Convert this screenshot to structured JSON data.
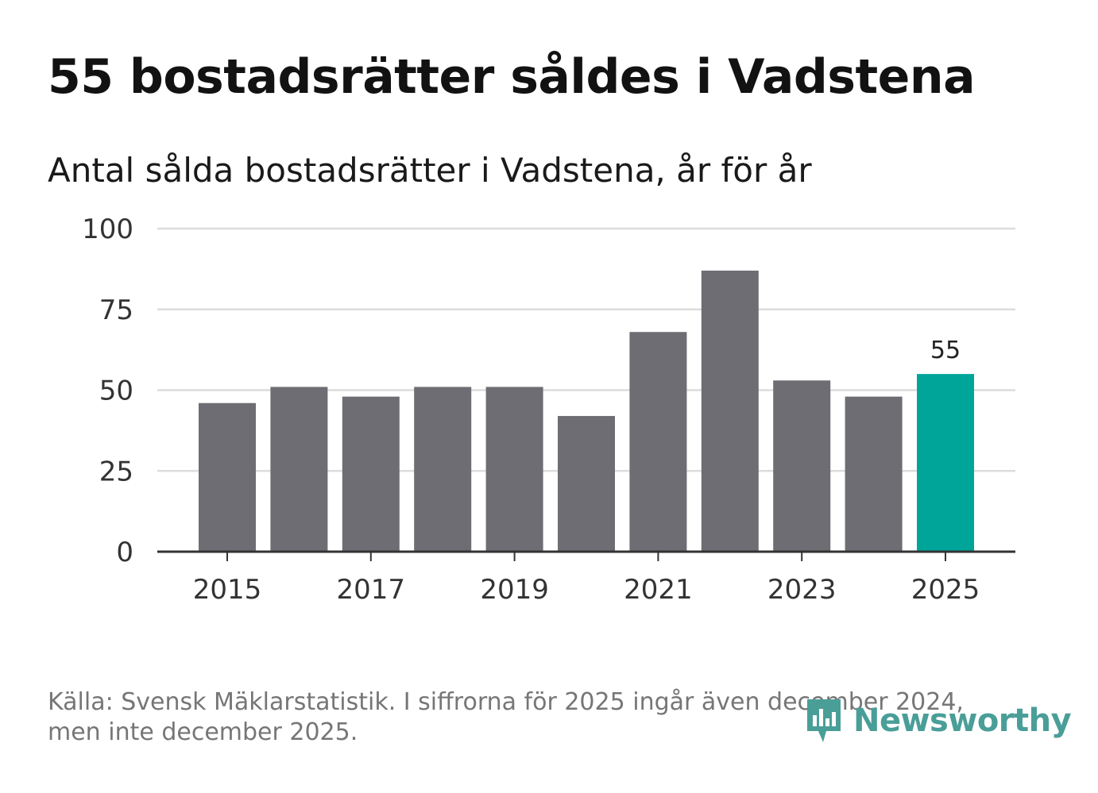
{
  "title": "55 bostadsrätter såldes i Vadstena",
  "subtitle": "Antal sålda bostadsrätter i Vadstena, år för år",
  "source": {
    "line1": "Källa: Svensk Mäklarstatistik. I siffrorna för 2025 ingår även december 2024,",
    "line2": "men inte december 2025."
  },
  "brand": {
    "name": "Newsworthy",
    "color": "#4a9e98"
  },
  "colors": {
    "bar": "#6e6d73",
    "highlight": "#00a59a",
    "grid": "#dcdcdc",
    "axis": "#333333"
  },
  "chart_data": {
    "type": "bar",
    "categories": [
      "2015",
      "2016",
      "2017",
      "2018",
      "2019",
      "2020",
      "2021",
      "2022",
      "2023",
      "2024",
      "2025"
    ],
    "values": [
      46,
      51,
      48,
      51,
      51,
      42,
      68,
      87,
      53,
      48,
      55
    ],
    "highlight_index": 10,
    "highlight_label": "55",
    "y_ticks": [
      0,
      25,
      50,
      75,
      100
    ],
    "x_tick_labels": [
      "2015",
      "2017",
      "2019",
      "2021",
      "2023",
      "2025"
    ],
    "ylim": [
      0,
      100
    ],
    "title": "Antal sålda bostadsrätter i Vadstena, år för år",
    "xlabel": "",
    "ylabel": ""
  }
}
